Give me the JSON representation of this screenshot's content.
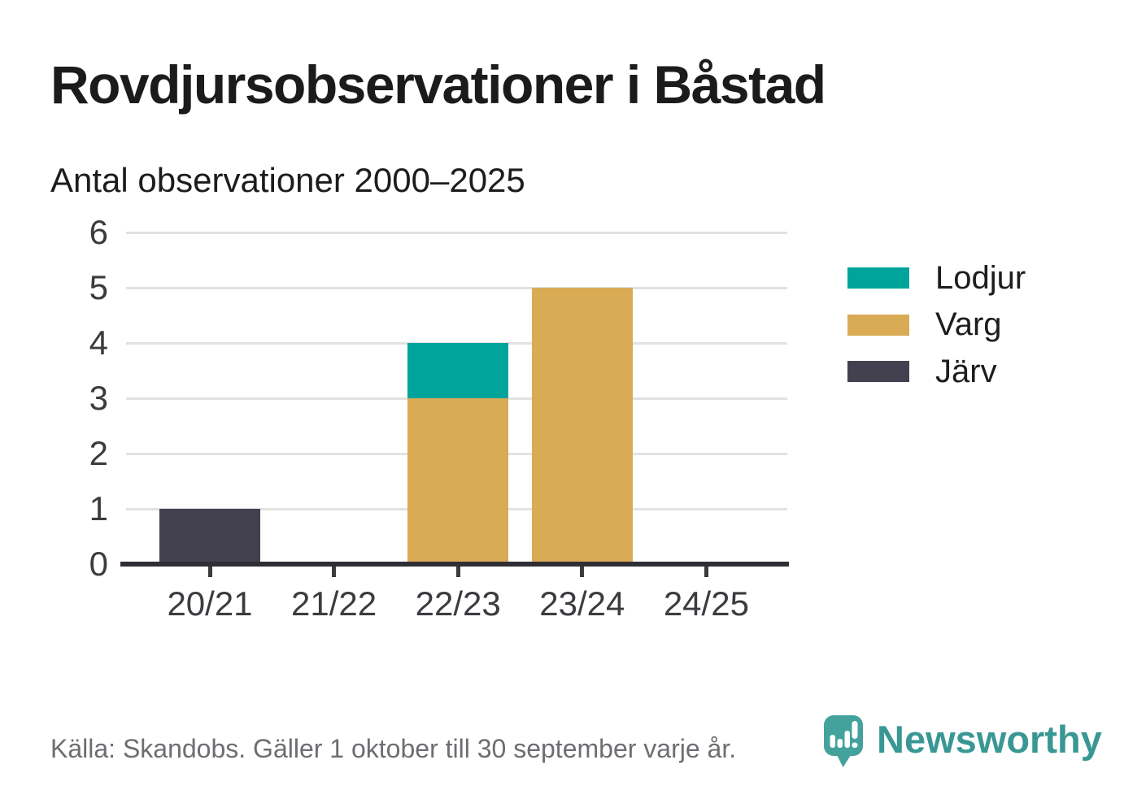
{
  "header": {
    "title": "Rovdjursobservationer i Båstad",
    "subtitle": "Antal observationer 2000–2025"
  },
  "chart_data": {
    "type": "bar",
    "stacked": true,
    "title": "Rovdjursobservationer i Båstad",
    "subtitle": "Antal observationer 2000–2025",
    "categories": [
      "20/21",
      "21/22",
      "22/23",
      "23/24",
      "24/25"
    ],
    "series": [
      {
        "name": "Lodjur",
        "color": "#00a49a",
        "values": [
          0,
          0,
          1,
          0,
          0
        ]
      },
      {
        "name": "Varg",
        "color": "#d9ab55",
        "values": [
          0,
          0,
          3,
          5,
          0
        ]
      },
      {
        "name": "Järv",
        "color": "#434050",
        "values": [
          1,
          0,
          0,
          0,
          0
        ]
      }
    ],
    "stack_order_bottom_to_top": [
      "Järv",
      "Varg",
      "Lodjur"
    ],
    "ylim": [
      0,
      6
    ],
    "yticks": [
      0,
      1,
      2,
      3,
      4,
      5,
      6
    ],
    "xlabel": "",
    "ylabel": "",
    "grid": true,
    "legend_position": "right"
  },
  "footer": {
    "source": "Källa: Skandobs. Gäller 1 oktober till 30 september varje år.",
    "brand": "Newsworthy"
  },
  "colors": {
    "lodjur_teal": "#00a49a",
    "varg_gold": "#d9ab55",
    "jarv_dark": "#434050",
    "brand_teal": "#399794",
    "logo_teal": "#44a29d",
    "gridline": "#e2e2e2",
    "axis": "#2f2e35",
    "tick_label": "#3b3b40",
    "source_gray": "#6d6d72"
  }
}
